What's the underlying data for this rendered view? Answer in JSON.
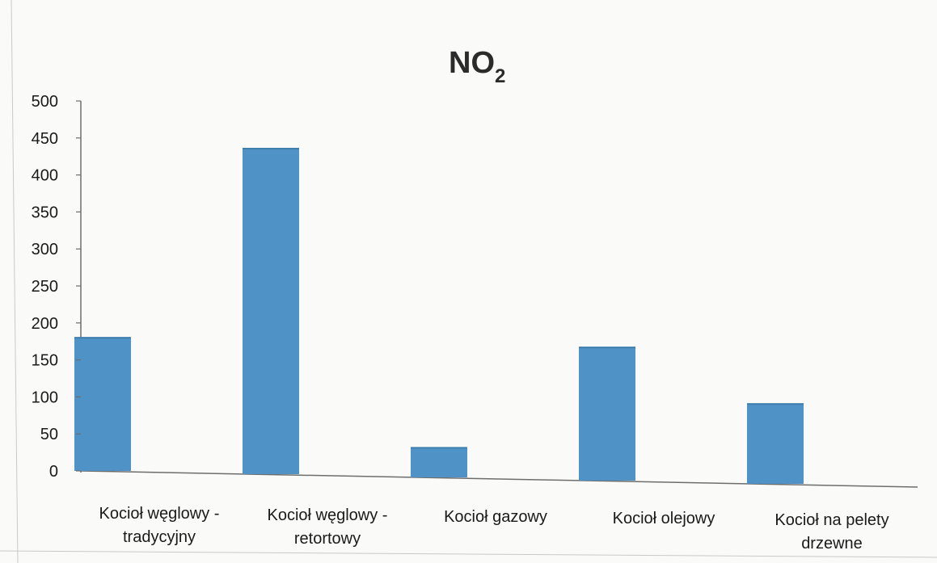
{
  "chart_data": {
    "type": "bar",
    "title": "NO₂",
    "title_main": "NO",
    "title_sub": "2",
    "xlabel": "",
    "ylabel": "",
    "ylim": [
      0,
      500
    ],
    "yticks": [
      0,
      50,
      100,
      150,
      200,
      250,
      300,
      350,
      400,
      450,
      500
    ],
    "grid": false,
    "legend": "none",
    "bar_color": "#4f93c6",
    "categories": [
      [
        "Kocioł węglowy -",
        "tradycyjny"
      ],
      [
        "Kocioł węglowy -",
        "retortowy"
      ],
      [
        "Kocioł gazowy"
      ],
      [
        "Kocioł olejowy"
      ],
      [
        "Kocioł na pelety",
        "drzewne"
      ]
    ],
    "values": [
      180,
      440,
      40,
      180,
      108
    ]
  }
}
